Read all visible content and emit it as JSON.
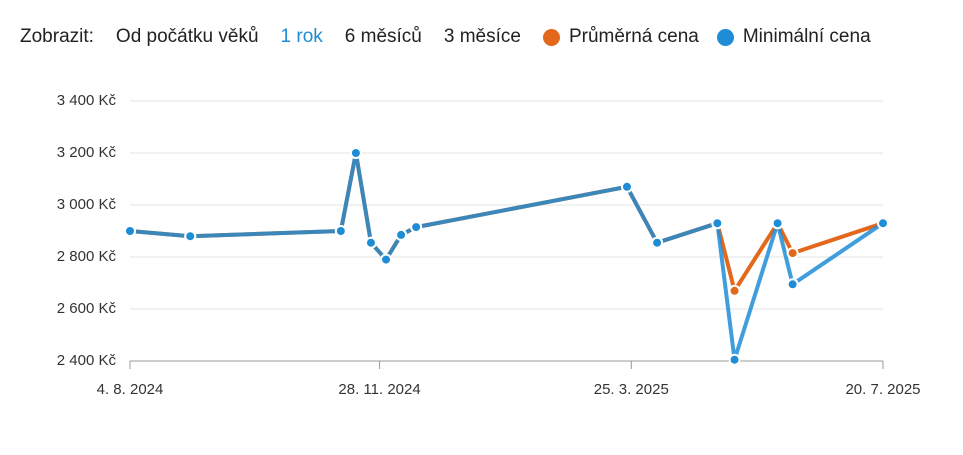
{
  "chart_data": {
    "type": "line",
    "range_label": "Zobrazit:",
    "range_options": [
      "Od počátku věků",
      "1 rok",
      "6 měsíců",
      "3 měsíce"
    ],
    "selected_range": 1,
    "x": [
      "2024-08-04",
      "2024-09-01",
      "2024-11-10",
      "2024-11-17",
      "2024-11-24",
      "2024-12-01",
      "2024-12-08",
      "2024-12-15",
      "2025-03-23",
      "2025-04-06",
      "2025-05-04",
      "2025-05-12",
      "2025-06-01",
      "2025-06-08",
      "2025-07-20"
    ],
    "series": [
      {
        "name": "Průměrná cena",
        "color": "#e3681b",
        "values": [
          2900,
          2880,
          2900,
          3200,
          2855,
          2790,
          2885,
          2915,
          3070,
          2855,
          2930,
          2670,
          2930,
          2815,
          2930
        ]
      },
      {
        "name": "Minimální cena",
        "color": "#1f8dd6",
        "values": [
          2900,
          2880,
          2900,
          3200,
          2855,
          2790,
          2885,
          2915,
          3070,
          2855,
          2930,
          2405,
          2930,
          2695,
          2930
        ]
      }
    ],
    "xlim": [
      "2024-08-04",
      "2025-07-20"
    ],
    "xticks": [
      {
        "value": "2024-08-04",
        "label": "4. 8. 2024"
      },
      {
        "value": "2024-11-28",
        "label": "28. 11. 2024"
      },
      {
        "value": "2025-03-25",
        "label": "25. 3. 2025"
      },
      {
        "value": "2025-07-20",
        "label": "20. 7. 2025"
      }
    ],
    "ylim": [
      2400,
      3400
    ],
    "yticks": [
      {
        "value": 2400,
        "label": "2 400 Kč"
      },
      {
        "value": 2600,
        "label": "2 600 Kč"
      },
      {
        "value": 2800,
        "label": "2 800 Kč"
      },
      {
        "value": 3000,
        "label": "3 000 Kč"
      },
      {
        "value": 3200,
        "label": "3 200 Kč"
      },
      {
        "value": 3400,
        "label": "3 400 Kč"
      }
    ],
    "grid": true
  }
}
